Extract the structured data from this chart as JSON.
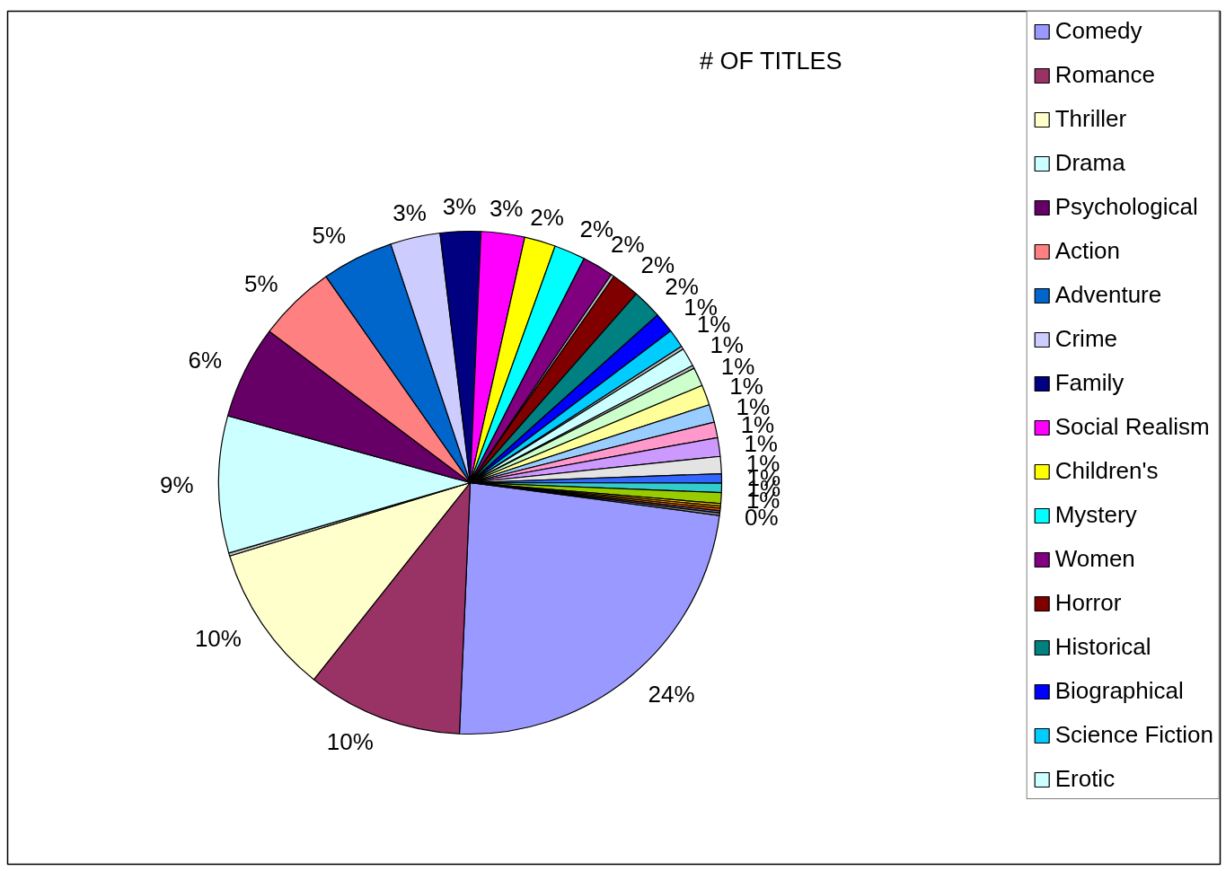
{
  "chart_data": {
    "type": "pie",
    "title": "# OF TITLES",
    "legend": "right",
    "categories": [
      "Comedy",
      "Romance",
      "Thriller",
      null,
      "Drama",
      "Psychological",
      "Action",
      "Adventure",
      "Crime",
      "Family",
      "Social Realism",
      "Children's",
      "Mystery",
      "Women",
      null,
      "Horror",
      "Historical",
      "Biographical",
      "Science Fiction",
      null,
      "Erotic",
      null,
      null,
      null,
      null,
      null,
      null,
      null,
      null,
      null,
      null,
      null,
      null,
      null,
      null,
      null
    ],
    "values": [
      23.6,
      10,
      9.6,
      0.2,
      8.8,
      6,
      5,
      4.6,
      3.2,
      2.6,
      2.8,
      2,
      2,
      2,
      0.2,
      1.8,
      1.9,
      1.3,
      1.2,
      0.2,
      1.2,
      0.2,
      1.2,
      1.3,
      1.15,
      1,
      1.2,
      1.1,
      0.6,
      0.6,
      0.7,
      0.15,
      0.15,
      0.15,
      0.15,
      0.15
    ],
    "colors": [
      "#9999ff",
      "#993366",
      "#ffffcc",
      "#c0c0c0",
      "#ccffff",
      "#660066",
      "#ff8080",
      "#0066cc",
      "#ccccff",
      "#000080",
      "#ff00ff",
      "#ffff00",
      "#00ffff",
      "#800080",
      "#c0c0c0",
      "#800000",
      "#008080",
      "#0000ff",
      "#00ccff",
      "#c0c0c0",
      "#ccffff",
      "#c0c0c0",
      "#ccffcc",
      "#ffff99",
      "#99ccff",
      "#ff99cc",
      "#cc99ff",
      "#e3e3e3",
      "#3366ff",
      "#33cccc",
      "#99cc00",
      "#ffcc00",
      "#ff9900",
      "#ff6600",
      "#666699",
      "#969696"
    ],
    "value_labels": [
      "24%",
      "10%",
      "10%",
      null,
      "9%",
      "6%",
      "5%",
      "5%",
      "3%",
      "3%",
      "3%",
      "2%",
      "2%",
      "2%",
      null,
      "2%",
      "2%",
      "1%",
      "1%",
      null,
      "1%",
      null,
      "1%",
      "1%",
      "1%",
      "1%",
      "1%",
      "1%",
      "1%",
      "1%",
      "1%",
      null,
      null,
      null,
      null,
      "0%"
    ]
  }
}
